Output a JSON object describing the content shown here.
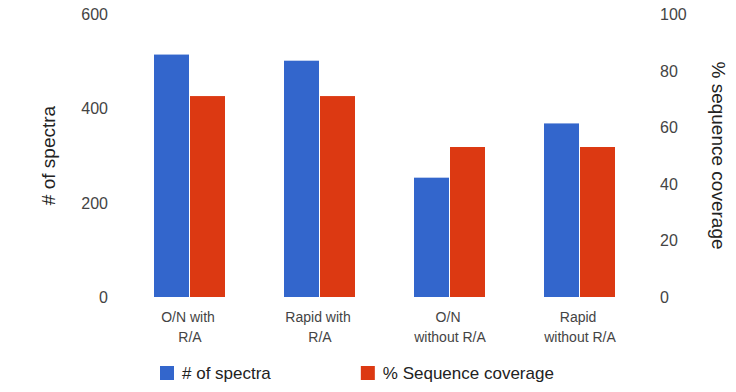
{
  "chart_data": {
    "type": "bar",
    "categories": [
      "O/N with R/A",
      "Rapid with R/A",
      "O/N without R/A",
      "Rapid without R/A"
    ],
    "series": [
      {
        "name": "# of spectra",
        "color": "#3366cc",
        "values": [
          514,
          501,
          253,
          368
        ]
      },
      {
        "name": "% Sequence coverage",
        "color": "#dc3912",
        "values": [
          71,
          71,
          53,
          53
        ],
        "axis": "y2"
      }
    ],
    "ylabel": "# of spectra",
    "y2label": "% sequence coverage",
    "ylim": [
      0,
      600
    ],
    "yticks": [
      0,
      200,
      400,
      600
    ],
    "y2lim": [
      0,
      100
    ],
    "y2ticks": [
      0,
      20,
      40,
      60,
      80,
      100
    ],
    "grid": false,
    "legend": "bottom"
  }
}
